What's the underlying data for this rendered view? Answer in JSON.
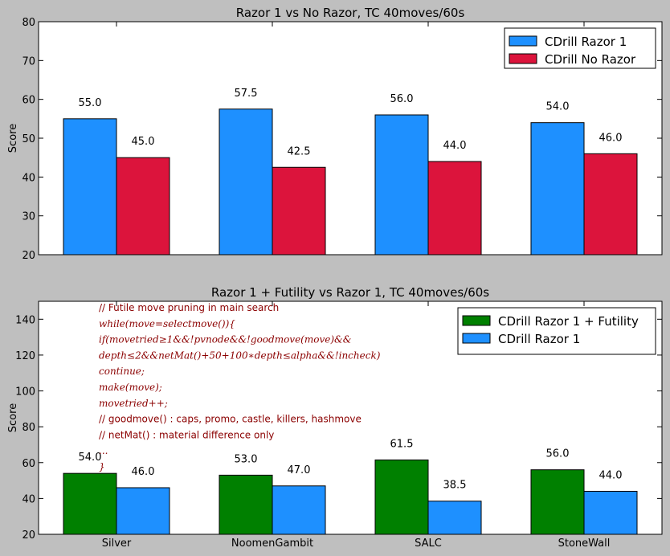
{
  "chart_data": [
    {
      "type": "bar",
      "title": "Razor 1 vs No Razor, TC 40moves/60s",
      "xlabel": "",
      "ylabel": "Score",
      "ylim": [
        20,
        80
      ],
      "yticks": [
        20,
        30,
        40,
        50,
        60,
        70,
        80
      ],
      "categories": [
        "",
        "",
        "",
        ""
      ],
      "series": [
        {
          "name": "CDrill Razor 1",
          "color": "#1e90ff",
          "values": [
            55.0,
            57.5,
            56.0,
            54.0
          ],
          "labels": [
            "55.0",
            "57.5",
            "56.0",
            "54.0"
          ]
        },
        {
          "name": "CDrill No Razor",
          "color": "#dc143c",
          "values": [
            45.0,
            42.5,
            44.0,
            46.0
          ],
          "labels": [
            "45.0",
            "42.5",
            "44.0",
            "46.0"
          ]
        }
      ],
      "legend": "top-right",
      "grid": false
    },
    {
      "type": "bar",
      "title": "Razor 1 + Futility vs Razor 1, TC 40moves/60s",
      "xlabel": "",
      "ylabel": "Score",
      "ylim": [
        20,
        150
      ],
      "yticks": [
        20,
        40,
        60,
        80,
        100,
        120,
        140
      ],
      "categories": [
        "Silver",
        "NoomenGambit",
        "SALC",
        "StoneWall"
      ],
      "series": [
        {
          "name": "CDrill Razor 1 + Futility",
          "color": "#008000",
          "values": [
            54.0,
            53.0,
            61.5,
            56.0
          ],
          "labels": [
            "54.0",
            "53.0",
            "61.5",
            "56.0"
          ]
        },
        {
          "name": "CDrill Razor 1",
          "color": "#1e90ff",
          "values": [
            46.0,
            47.0,
            38.5,
            44.0
          ],
          "labels": [
            "46.0",
            "47.0",
            "38.5",
            "44.0"
          ]
        }
      ],
      "legend": "top-right",
      "grid": false,
      "annotation": [
        {
          "text": "// Futile move pruning in main search",
          "style": "normal"
        },
        {
          "text": "while(move=selectmove()){",
          "style": "math"
        },
        {
          "text": "if(movetried≥1&&!pvnode&&!goodmove(move)&&",
          "style": "math"
        },
        {
          "text": "depth≤2&&netMat()+50+100∗depth≤alpha&&!incheck)",
          "style": "math"
        },
        {
          "text": "continue;",
          "style": "math"
        },
        {
          "text": "make(move);",
          "style": "math"
        },
        {
          "text": "movetried++;",
          "style": "math"
        },
        {
          "text": "// goodmove() : caps, promo, castle, killers, hashmove",
          "style": "normal"
        },
        {
          "text": "// netMat()   : material difference only",
          "style": "normal"
        },
        {
          "text": "...",
          "style": "math"
        },
        {
          "text": "}",
          "style": "math"
        }
      ]
    }
  ]
}
